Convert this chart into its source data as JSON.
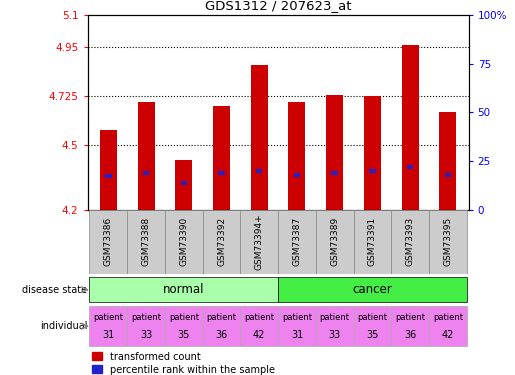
{
  "title": "GDS1312 / 207623_at",
  "samples": [
    "GSM73386",
    "GSM73388",
    "GSM73390",
    "GSM73392",
    "GSM73394+",
    "GSM73387",
    "GSM73389",
    "GSM73391",
    "GSM73393",
    "GSM73395"
  ],
  "bar_values": [
    4.57,
    4.7,
    4.43,
    4.68,
    4.87,
    4.7,
    4.73,
    4.725,
    4.96,
    4.65
  ],
  "blue_values": [
    4.355,
    4.37,
    4.325,
    4.37,
    4.38,
    4.36,
    4.37,
    4.38,
    4.4,
    4.36
  ],
  "ylim": [
    4.2,
    5.1
  ],
  "yticks": [
    4.2,
    4.5,
    4.725,
    4.95,
    5.1
  ],
  "ytick_labels": [
    "4.2",
    "4.5",
    "4.725",
    "4.95",
    "5.1"
  ],
  "right_yticks_pct": [
    0,
    25,
    50,
    75,
    100
  ],
  "right_ytick_labels": [
    "0",
    "25",
    "50",
    "75",
    "100%"
  ],
  "bar_color": "#cc0000",
  "blue_color": "#2222cc",
  "disease_state_normal_color": "#aaffaa",
  "disease_state_cancer_color": "#44ee44",
  "individual_color": "#ee82ee",
  "individuals_normal": [
    "patient\n31",
    "patient\n33",
    "patient\n35",
    "patient\n36",
    "patient\n42"
  ],
  "individuals_cancer": [
    "patient\n31",
    "patient\n33",
    "patient\n35",
    "patient\n36",
    "patient\n42"
  ],
  "sample_bg_color": "#cccccc",
  "bar_width": 0.45
}
